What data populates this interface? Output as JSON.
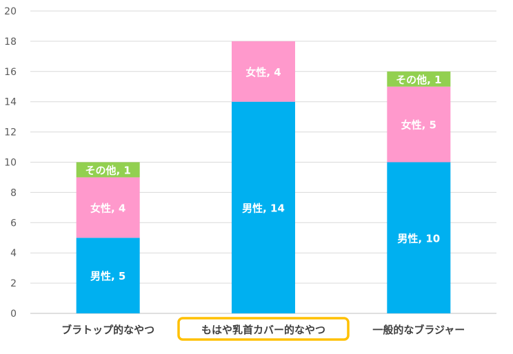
{
  "chart_data": {
    "type": "bar",
    "stacked": true,
    "categories": [
      "ブラトップ的なやつ",
      "もはや乳首カバー的なやつ",
      "一般的なブラジャー"
    ],
    "highlighted_category": "もはや乳首カバー的なやつ",
    "series": [
      {
        "name": "男性",
        "values": [
          5,
          14,
          10
        ],
        "color": "#00B0F0",
        "labels": [
          "男性, 5",
          "男性, 14",
          "男性, 10"
        ]
      },
      {
        "name": "女性",
        "values": [
          4,
          4,
          5
        ],
        "color": "#FF99CC",
        "labels": [
          "女性, 4",
          "女性, 4",
          "女性, 5"
        ]
      },
      {
        "name": "その他",
        "values": [
          1,
          0,
          1
        ],
        "color": "#92D050",
        "labels": [
          "その他, 1",
          "",
          "その他, 1"
        ]
      }
    ],
    "yticks": [
      "0",
      "2",
      "4",
      "6",
      "8",
      "10",
      "12",
      "14",
      "16",
      "18",
      "20"
    ],
    "ylim": [
      0,
      20
    ],
    "grid": true,
    "highlight_color": "#FFC000",
    "title": "",
    "xlabel": "",
    "ylabel": ""
  }
}
